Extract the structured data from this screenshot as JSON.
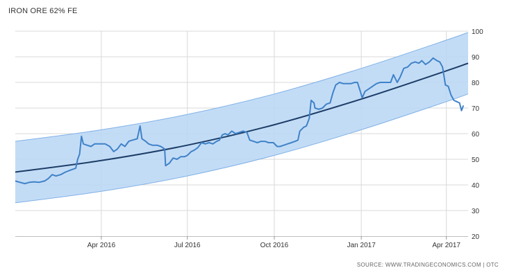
{
  "title": "IRON ORE 62% FE",
  "source_label": "SOURCE: WWW.TRADINGECONOMICS.COM | OTC",
  "colors": {
    "series": "#3f82c8",
    "trend": "#1c3d66",
    "band_fill": "#b9d6f5",
    "band_edge": "#7fb0e6",
    "grid": "#d9d9d9"
  },
  "chart_data": {
    "type": "line",
    "title": "IRON ORE 62% FE",
    "xlabel": "",
    "ylabel": "",
    "ylim": [
      20,
      100
    ],
    "xlim": [
      "2016-01-01",
      "2017-04-24"
    ],
    "yticks": [
      20,
      30,
      40,
      50,
      60,
      70,
      80,
      90,
      100
    ],
    "xticks": [
      {
        "date": "2016-04-01",
        "label": "Apr 2016"
      },
      {
        "date": "2016-07-01",
        "label": "Jul 2016"
      },
      {
        "date": "2016-10-01",
        "label": "Oct 2016"
      },
      {
        "date": "2017-01-01",
        "label": "Jan 2017"
      },
      {
        "date": "2017-04-01",
        "label": "Apr 2017"
      }
    ],
    "grid": true,
    "y_axis_position": "right",
    "series": [
      {
        "role": "price",
        "points": [
          [
            "2016-01-01",
            41.5
          ],
          [
            "2016-01-06",
            41
          ],
          [
            "2016-01-11",
            40.5
          ],
          [
            "2016-01-16",
            41
          ],
          [
            "2016-01-21",
            41.2
          ],
          [
            "2016-01-26",
            41
          ],
          [
            "2016-02-01",
            41.5
          ],
          [
            "2016-02-05",
            42.5
          ],
          [
            "2016-02-09",
            44
          ],
          [
            "2016-02-13",
            43.5
          ],
          [
            "2016-02-18",
            44
          ],
          [
            "2016-02-23",
            45
          ],
          [
            "2016-03-01",
            46
          ],
          [
            "2016-03-05",
            46.5
          ],
          [
            "2016-03-07",
            50
          ],
          [
            "2016-03-09",
            52
          ],
          [
            "2016-03-11",
            59
          ],
          [
            "2016-03-13",
            56
          ],
          [
            "2016-03-17",
            55.5
          ],
          [
            "2016-03-21",
            55
          ],
          [
            "2016-03-25",
            56
          ],
          [
            "2016-03-31",
            56
          ],
          [
            "2016-04-05",
            56
          ],
          [
            "2016-04-10",
            55
          ],
          [
            "2016-04-14",
            53
          ],
          [
            "2016-04-18",
            54
          ],
          [
            "2016-04-22",
            56
          ],
          [
            "2016-04-26",
            55
          ],
          [
            "2016-04-30",
            57
          ],
          [
            "2016-05-04",
            57.5
          ],
          [
            "2016-05-09",
            58
          ],
          [
            "2016-05-12",
            63
          ],
          [
            "2016-05-14",
            58
          ],
          [
            "2016-05-18",
            57
          ],
          [
            "2016-05-21",
            56
          ],
          [
            "2016-05-25",
            55.5
          ],
          [
            "2016-05-30",
            55.5
          ],
          [
            "2016-06-03",
            55
          ],
          [
            "2016-06-07",
            54
          ],
          [
            "2016-06-08",
            47.5
          ],
          [
            "2016-06-12",
            48.5
          ],
          [
            "2016-06-16",
            50.5
          ],
          [
            "2016-06-20",
            50
          ],
          [
            "2016-06-24",
            51
          ],
          [
            "2016-06-28",
            51
          ],
          [
            "2016-07-01",
            51.5
          ],
          [
            "2016-07-05",
            53
          ],
          [
            "2016-07-08",
            53.5
          ],
          [
            "2016-07-12",
            54.5
          ],
          [
            "2016-07-16",
            56.5
          ],
          [
            "2016-07-20",
            56
          ],
          [
            "2016-07-24",
            56.5
          ],
          [
            "2016-07-28",
            56
          ],
          [
            "2016-08-01",
            57
          ],
          [
            "2016-08-04",
            57.5
          ],
          [
            "2016-08-07",
            59.5
          ],
          [
            "2016-08-10",
            60
          ],
          [
            "2016-08-13",
            59.5
          ],
          [
            "2016-08-17",
            61
          ],
          [
            "2016-08-21",
            60
          ],
          [
            "2016-08-25",
            60.5
          ],
          [
            "2016-08-29",
            61
          ],
          [
            "2016-09-02",
            60.5
          ],
          [
            "2016-09-05",
            57.5
          ],
          [
            "2016-09-09",
            57
          ],
          [
            "2016-09-13",
            56.5
          ],
          [
            "2016-09-17",
            57
          ],
          [
            "2016-09-21",
            57
          ],
          [
            "2016-09-25",
            56.5
          ],
          [
            "2016-09-30",
            56.5
          ],
          [
            "2016-10-04",
            55
          ],
          [
            "2016-10-07",
            55
          ],
          [
            "2016-10-11",
            55.5
          ],
          [
            "2016-10-15",
            56
          ],
          [
            "2016-10-19",
            56.5
          ],
          [
            "2016-10-23",
            57
          ],
          [
            "2016-10-26",
            57.5
          ],
          [
            "2016-10-28",
            61
          ],
          [
            "2016-11-01",
            62.5
          ],
          [
            "2016-11-04",
            63
          ],
          [
            "2016-11-07",
            66
          ],
          [
            "2016-11-09",
            73
          ],
          [
            "2016-11-12",
            72
          ],
          [
            "2016-11-13",
            70
          ],
          [
            "2016-11-17",
            69.5
          ],
          [
            "2016-11-21",
            70
          ],
          [
            "2016-11-25",
            71.5
          ],
          [
            "2016-11-29",
            72
          ],
          [
            "2016-12-02",
            76
          ],
          [
            "2016-12-05",
            79
          ],
          [
            "2016-12-09",
            80
          ],
          [
            "2016-12-13",
            79.5
          ],
          [
            "2016-12-17",
            79.5
          ],
          [
            "2016-12-21",
            79.5
          ],
          [
            "2016-12-25",
            80
          ],
          [
            "2016-12-28",
            80
          ],
          [
            "2016-12-31",
            76.5
          ],
          [
            "2017-01-02",
            74
          ],
          [
            "2017-01-05",
            76.5
          ],
          [
            "2017-01-09",
            77.5
          ],
          [
            "2017-01-13",
            78.5
          ],
          [
            "2017-01-17",
            79.5
          ],
          [
            "2017-01-21",
            80
          ],
          [
            "2017-01-25",
            80
          ],
          [
            "2017-01-29",
            80
          ],
          [
            "2017-02-01",
            80
          ],
          [
            "2017-02-04",
            83
          ],
          [
            "2017-02-08",
            80
          ],
          [
            "2017-02-11",
            82
          ],
          [
            "2017-02-15",
            85.5
          ],
          [
            "2017-02-19",
            86
          ],
          [
            "2017-02-23",
            87.5
          ],
          [
            "2017-02-27",
            88
          ],
          [
            "2017-03-03",
            87.5
          ],
          [
            "2017-03-06",
            88.5
          ],
          [
            "2017-03-10",
            87
          ],
          [
            "2017-03-14",
            88
          ],
          [
            "2017-03-18",
            89.5
          ],
          [
            "2017-03-22",
            88.5
          ],
          [
            "2017-03-25",
            88
          ],
          [
            "2017-03-28",
            86
          ],
          [
            "2017-03-31",
            79
          ],
          [
            "2017-04-03",
            78.5
          ],
          [
            "2017-04-06",
            75
          ],
          [
            "2017-04-09",
            73
          ],
          [
            "2017-04-12",
            72.5
          ],
          [
            "2017-04-15",
            72
          ],
          [
            "2017-04-17",
            69
          ],
          [
            "2017-04-19",
            71
          ]
        ]
      },
      {
        "role": "trend",
        "points": [
          [
            "2016-01-01",
            45
          ],
          [
            "2016-04-01",
            49.5
          ],
          [
            "2016-07-01",
            55.5
          ],
          [
            "2016-10-01",
            63.5
          ],
          [
            "2017-01-01",
            73.5
          ],
          [
            "2017-04-01",
            84.5
          ],
          [
            "2017-04-24",
            87.5
          ]
        ]
      },
      {
        "role": "band_upper",
        "points": [
          [
            "2016-01-01",
            57
          ],
          [
            "2016-04-01",
            61.5
          ],
          [
            "2016-07-01",
            67.5
          ],
          [
            "2016-10-01",
            75.5
          ],
          [
            "2017-01-01",
            85.5
          ],
          [
            "2017-04-01",
            96.5
          ],
          [
            "2017-04-24",
            99.5
          ]
        ]
      },
      {
        "role": "band_lower",
        "points": [
          [
            "2016-01-01",
            33
          ],
          [
            "2016-04-01",
            37.5
          ],
          [
            "2016-07-01",
            43.5
          ],
          [
            "2016-10-01",
            51.5
          ],
          [
            "2017-01-01",
            61.5
          ],
          [
            "2017-04-01",
            72.5
          ],
          [
            "2017-04-24",
            75.5
          ]
        ]
      }
    ]
  }
}
